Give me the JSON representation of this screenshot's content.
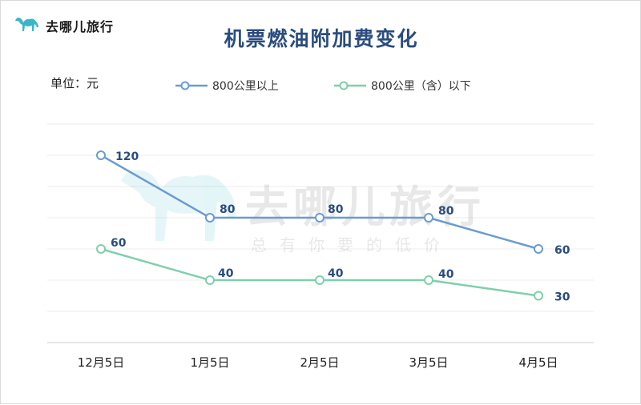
{
  "brand": {
    "name": "去哪儿旅行",
    "icon": "camel-logo-icon",
    "color": "#3ab6c8"
  },
  "watermark": {
    "name": "去哪儿旅行",
    "slogan": "总有你要的低价"
  },
  "chart_data": {
    "type": "line",
    "title": "机票燃油附加费变化",
    "unit_label": "单位：元",
    "categories": [
      "12月5日",
      "1月5日",
      "2月5日",
      "3月5日",
      "4月5日"
    ],
    "series": [
      {
        "name": "800公里以上",
        "values": [
          120,
          80,
          80,
          80,
          60
        ],
        "color": "#6a9ccf",
        "label_color": "#2a4c7f"
      },
      {
        "name": "800公里（含）以下",
        "values": [
          60,
          40,
          40,
          40,
          30
        ],
        "color": "#7fcfae",
        "label_color": "#2a4c7f"
      }
    ],
    "ylim": [
      0,
      140
    ],
    "grid": true,
    "legend_position": "top"
  }
}
